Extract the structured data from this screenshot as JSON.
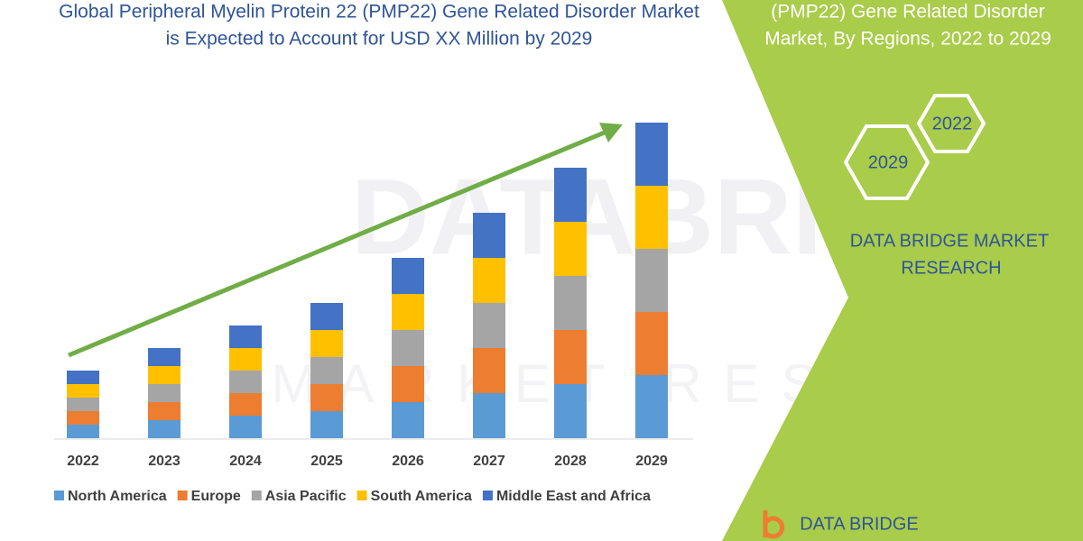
{
  "chart_data": {
    "type": "stacked_bar",
    "title": [
      "Global Peripheral Myelin Protein 22 (PMP22) Gene Related Disorder Market",
      "is Expected to Account for USD XX Million by 2029"
    ],
    "categories": [
      "2022",
      "2023",
      "2024",
      "2025",
      "2026",
      "2027",
      "2028",
      "2029"
    ],
    "series": [
      {
        "name": "North America",
        "color": "#5b9bd5",
        "values": [
          15,
          20,
          25,
          30,
          40,
          50,
          60,
          70
        ]
      },
      {
        "name": "Europe",
        "color": "#ed7d31",
        "values": [
          15,
          20,
          25,
          30,
          40,
          50,
          60,
          70
        ]
      },
      {
        "name": "Asia Pacific",
        "color": "#a5a5a5",
        "values": [
          15,
          20,
          25,
          30,
          40,
          50,
          60,
          70
        ]
      },
      {
        "name": "South America",
        "color": "#ffc000",
        "values": [
          15,
          20,
          25,
          30,
          40,
          50,
          60,
          70
        ]
      },
      {
        "name": "Middle East and Africa",
        "color": "#4472c4",
        "values": [
          15,
          20,
          25,
          30,
          40,
          50,
          60,
          70
        ]
      }
    ],
    "ylim": [
      0,
      360
    ],
    "legend": "bottom",
    "trend_color": "#70ad47"
  },
  "panel": {
    "heading": [
      "(PMP22) Gene Related Disorder",
      "Market, By Regions, 2022 to 2029"
    ],
    "hexagons": [
      "2022",
      "2029"
    ],
    "brand": [
      "DATA BRIDGE MARKET",
      "RESEARCH"
    ],
    "logo": "DATA BRIDGE",
    "watermark": [
      "DATABRIDGE",
      "MARKET RESEARCH"
    ]
  }
}
